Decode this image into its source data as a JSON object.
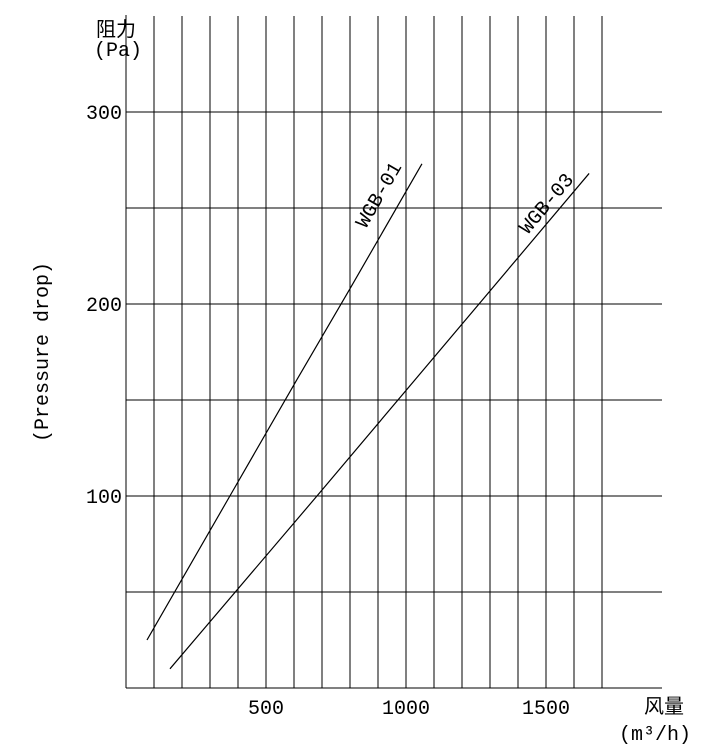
{
  "chart_data": {
    "type": "line",
    "y_label": "阻力",
    "y_unit": "(Pa)",
    "y_label_en": "(Pressure drop)",
    "x_label": "风量",
    "x_unit": "(m³/h)",
    "xlim": [
      0,
      1900
    ],
    "ylim": [
      0,
      350
    ],
    "xticks": [
      500,
      1000,
      1500
    ],
    "yticks": [
      100,
      200,
      300
    ],
    "x_minor_grid": [
      100,
      200,
      300,
      400,
      500,
      600,
      700,
      800,
      900,
      1000,
      1100,
      1200,
      1300,
      1400,
      1500,
      1600,
      1700
    ],
    "y_minor_grid": [
      50,
      100,
      150,
      200,
      250,
      300
    ],
    "grid": true,
    "series": [
      {
        "name": "WGB-01",
        "color": "#000000",
        "x": [
          75,
          371,
          600,
          800,
          1057
        ],
        "values": [
          25,
          100,
          158,
          208,
          273
        ]
      },
      {
        "name": "WGB-03",
        "color": "#000000",
        "x": [
          157,
          682,
          1654
        ],
        "values": [
          10,
          100,
          268
        ]
      }
    ]
  }
}
